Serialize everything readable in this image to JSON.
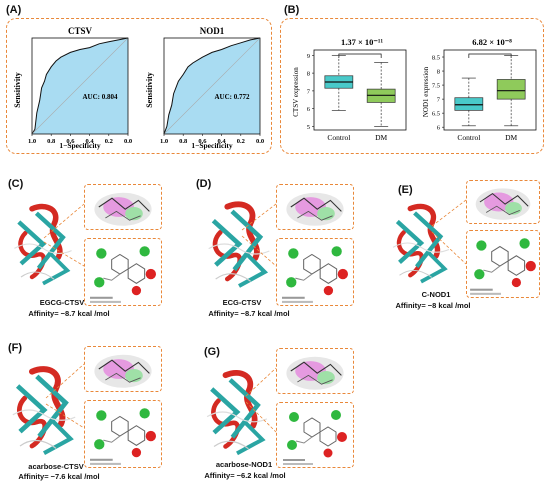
{
  "panels": {
    "A": {
      "label": "(A)",
      "charts": [
        {
          "title": "CTSV",
          "auc": "AUC: 0.804",
          "xlabel": "1−Specificity",
          "ylabel": "Sensitivity"
        },
        {
          "title": "NOD1",
          "auc": "AUC: 0.772",
          "xlabel": "1−Specificity",
          "ylabel": "Sensitivity"
        }
      ],
      "xticks": [
        "1.0",
        "0.8",
        "0.6",
        "0.4",
        "0.2",
        "0.0"
      ]
    },
    "B": {
      "label": "(B)",
      "charts": [
        {
          "pvalue": "1.37 × 10⁻¹¹",
          "ylabel": "CTSV expression",
          "yticks": [
            "5",
            "6",
            "7",
            "8",
            "9"
          ],
          "groups": [
            "Control",
            "DM"
          ]
        },
        {
          "pvalue": "6.82 × 10⁻⁸",
          "ylabel": "NOD1 expression",
          "yticks": [
            "6",
            "6.5",
            "7",
            "7.5",
            "8",
            "8.5"
          ],
          "groups": [
            "Control",
            "DM"
          ]
        }
      ]
    },
    "C": {
      "label": "(C)",
      "name": "EGCG-CTSV",
      "affinity": "Affinity= −8.7 kcal /mol"
    },
    "D": {
      "label": "(D)",
      "name": "ECG-CTSV",
      "affinity": "Affinity= −8.7 kcal /mol"
    },
    "E": {
      "label": "(E)",
      "name": "C-NOD1",
      "affinity": "Affinity= −8 kcal /mol"
    },
    "F": {
      "label": "(F)",
      "name": "acarbose-CTSV",
      "affinity": "Affinity= −7.6 kcal /mol"
    },
    "G": {
      "label": "(G)",
      "name": "acarbose-NOD1",
      "affinity": "Affinity= −6.2 kcal /mol"
    }
  },
  "colors": {
    "orange_dash": "#e9883a",
    "roc_fill": "#a9dcf2",
    "control_box": "#49c9c9",
    "dm_box": "#8fca5b",
    "protein_helix": "#d42a22",
    "protein_sheet": "#2aa5a3"
  },
  "chart_data": [
    {
      "type": "line",
      "title": "CTSV",
      "xlabel": "1−Specificity",
      "ylabel": "Sensitivity",
      "xlim": [
        1.0,
        0.0
      ],
      "ylim": [
        0,
        1
      ],
      "annotation": "AUC: 0.804",
      "x": [
        1.0,
        0.97,
        0.95,
        0.92,
        0.9,
        0.87,
        0.85,
        0.8,
        0.75,
        0.7,
        0.6,
        0.5,
        0.4,
        0.3,
        0.2,
        0.1,
        0.0
      ],
      "y": [
        0.0,
        0.05,
        0.22,
        0.35,
        0.48,
        0.55,
        0.62,
        0.7,
        0.76,
        0.8,
        0.85,
        0.88,
        0.9,
        0.94,
        0.96,
        0.98,
        1.0
      ]
    },
    {
      "type": "line",
      "title": "NOD1",
      "xlabel": "1−Specificity",
      "ylabel": "Sensitivity",
      "xlim": [
        1.0,
        0.0
      ],
      "ylim": [
        0,
        1
      ],
      "annotation": "AUC: 0.772",
      "x": [
        1.0,
        0.97,
        0.95,
        0.92,
        0.9,
        0.85,
        0.8,
        0.75,
        0.7,
        0.6,
        0.5,
        0.4,
        0.3,
        0.2,
        0.1,
        0.0
      ],
      "y": [
        0.0,
        0.08,
        0.2,
        0.3,
        0.42,
        0.55,
        0.62,
        0.7,
        0.74,
        0.8,
        0.85,
        0.88,
        0.92,
        0.95,
        0.98,
        1.0
      ]
    },
    {
      "type": "box",
      "ylabel": "CTSV expression",
      "categories": [
        "Control",
        "DM"
      ],
      "ylim": [
        4.8,
        9.3
      ],
      "annotation": "1.37 × 10⁻¹¹",
      "boxes": [
        {
          "min": 5.9,
          "q1": 7.15,
          "median": 7.5,
          "q3": 7.85,
          "max": 9.0
        },
        {
          "min": 5.0,
          "q1": 6.35,
          "median": 6.75,
          "q3": 7.1,
          "max": 8.6
        }
      ]
    },
    {
      "type": "box",
      "ylabel": "NOD1 expression",
      "categories": [
        "Control",
        "DM"
      ],
      "ylim": [
        5.9,
        8.75
      ],
      "annotation": "6.82 × 10⁻⁸",
      "boxes": [
        {
          "min": 6.05,
          "q1": 6.6,
          "median": 6.8,
          "q3": 7.05,
          "max": 7.75
        },
        {
          "min": 6.05,
          "q1": 7.0,
          "median": 7.3,
          "q3": 7.7,
          "max": 8.55
        }
      ]
    }
  ]
}
